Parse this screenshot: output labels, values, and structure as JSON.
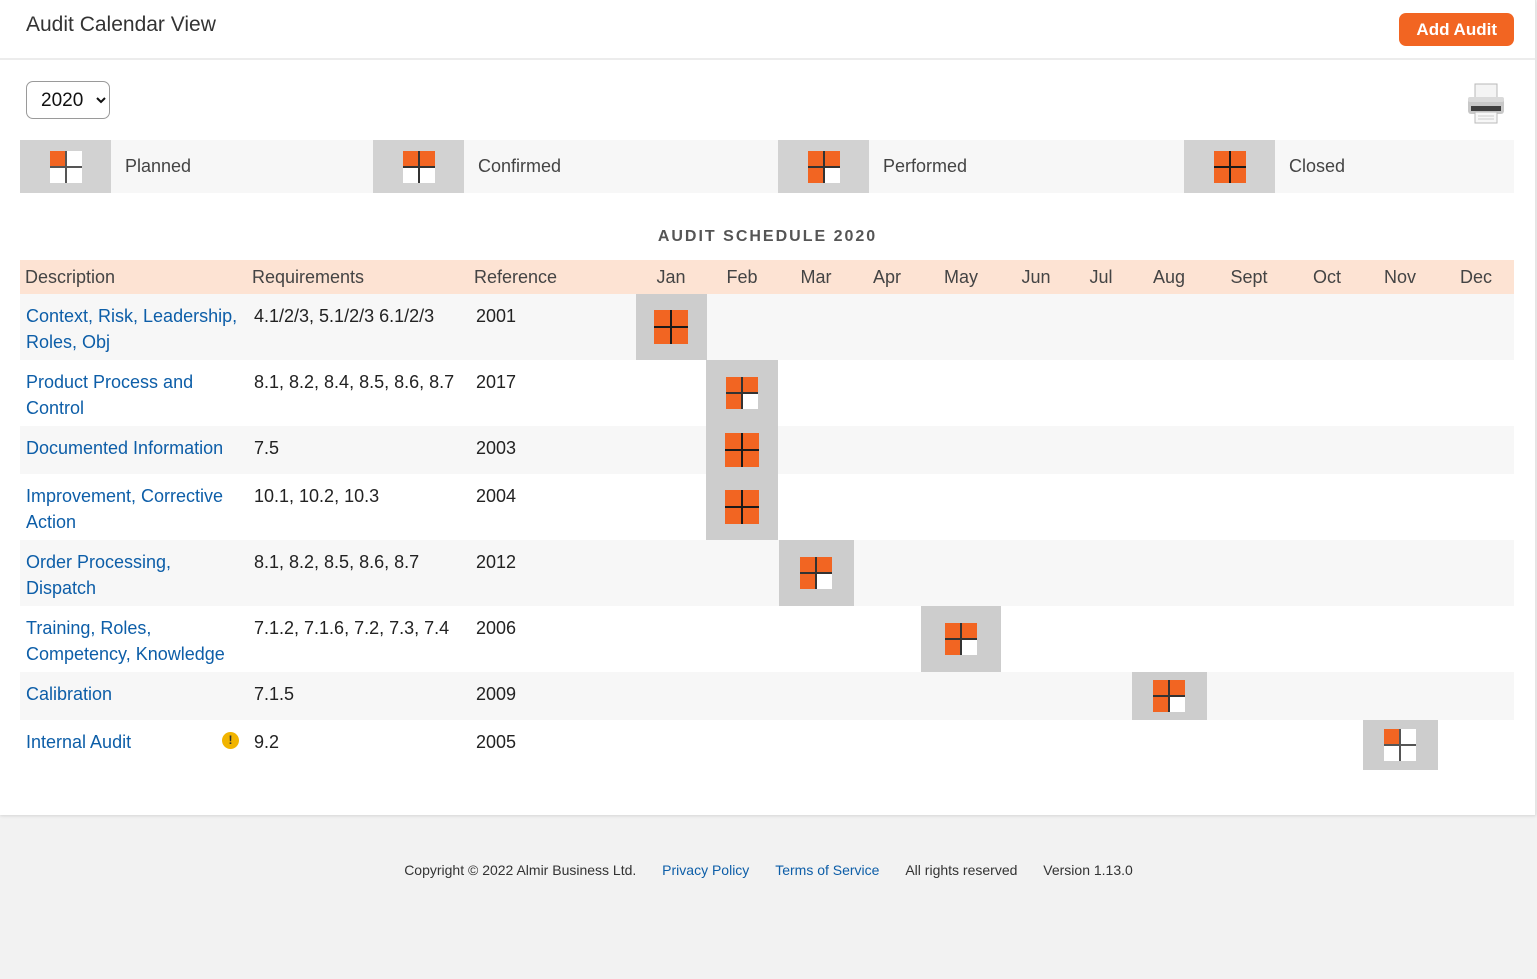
{
  "header": {
    "title": "Audit Calendar View",
    "add_button": "Add Audit"
  },
  "year": "2020",
  "legend": [
    {
      "label": "Planned",
      "status": "planned"
    },
    {
      "label": "Confirmed",
      "status": "confirmed"
    },
    {
      "label": "Performed",
      "status": "performed"
    },
    {
      "label": "Closed",
      "status": "closed"
    }
  ],
  "schedule_title": "AUDIT SCHEDULE 2020",
  "columns": {
    "description": "Description",
    "requirements": "Requirements",
    "reference": "Reference",
    "months": [
      "Jan",
      "Feb",
      "Mar",
      "Apr",
      "May",
      "Jun",
      "Jul",
      "Aug",
      "Sept",
      "Oct",
      "Nov",
      "Dec"
    ]
  },
  "audits": [
    {
      "description": "Context, Risk, Leadership, Roles, Obj",
      "requirements": "4.1/2/3, 5.1/2/3 6.1/2/3",
      "reference": "2001",
      "month": "Jan",
      "status": "closed"
    },
    {
      "description": "Product Process and Control",
      "requirements": "8.1, 8.2, 8.4, 8.5, 8.6, 8.7",
      "reference": "2017",
      "month": "Feb",
      "status": "performed"
    },
    {
      "description": "Documented Information",
      "requirements": "7.5",
      "reference": "2003",
      "month": "Feb",
      "status": "closed"
    },
    {
      "description": "Improvement, Corrective Action",
      "requirements": "10.1, 10.2, 10.3",
      "reference": "2004",
      "month": "Feb",
      "status": "closed"
    },
    {
      "description": "Order Processing, Dispatch",
      "requirements": "8.1, 8.2, 8.5, 8.6, 8.7",
      "reference": "2012",
      "month": "Mar",
      "status": "performed"
    },
    {
      "description": "Training, Roles, Competency, Knowledge",
      "requirements": "7.1.2, 7.1.6, 7.2, 7.3, 7.4",
      "reference": "2006",
      "month": "May",
      "status": "performed"
    },
    {
      "description": "Calibration",
      "requirements": "7.1.5",
      "reference": "2009",
      "month": "Aug",
      "status": "performed"
    },
    {
      "description": "Internal Audit",
      "requirements": "9.2",
      "reference": "2005",
      "month": "Nov",
      "status": "planned",
      "warning": "!"
    }
  ],
  "footer": {
    "copyright": "Copyright © 2022 Almir Business Ltd.",
    "privacy": "Privacy Policy",
    "terms": "Terms of Service",
    "rights": "All rights reserved",
    "version": "Version 1.13.0"
  },
  "colors": {
    "accent": "#f26522",
    "header_row": "#fde3d3",
    "link": "#0d5ea8",
    "cell_bg": "#cdcdcd"
  },
  "icons": {
    "print": "printer-icon",
    "status": "quadrant-icon",
    "warning": "warning-icon"
  }
}
